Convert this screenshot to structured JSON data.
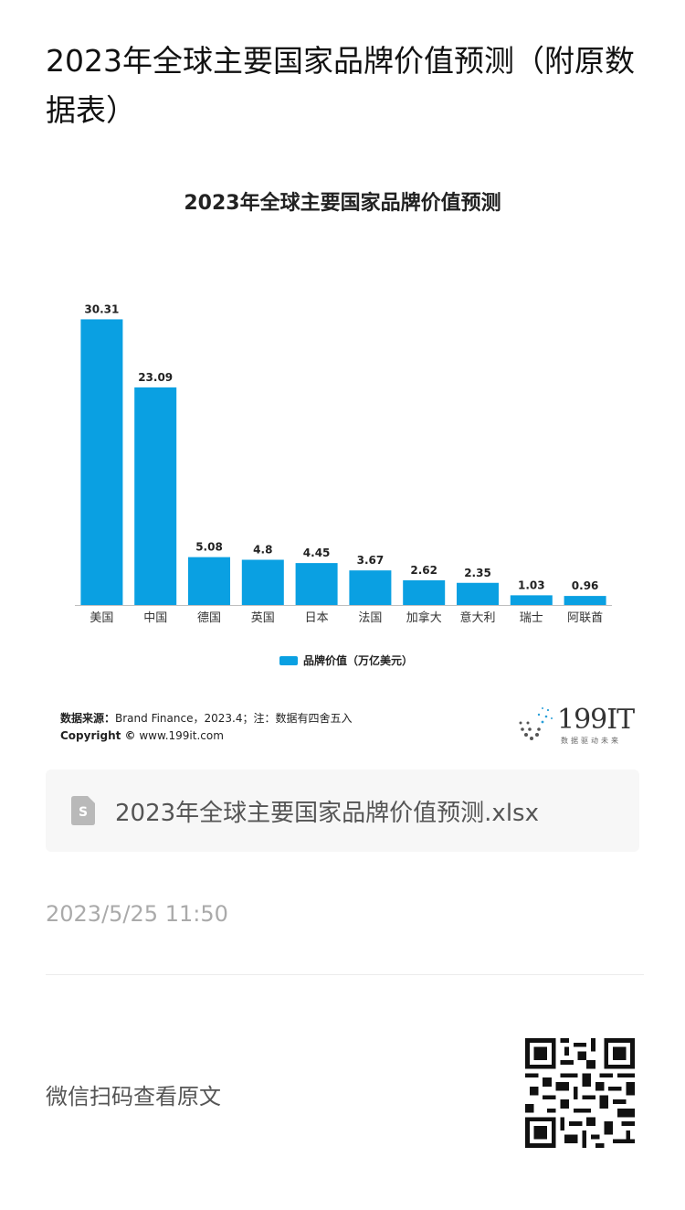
{
  "article": {
    "title": "2023年全球主要国家品牌价值预测（附原数据表）"
  },
  "chart_data": {
    "type": "bar",
    "title": "2023年全球主要国家品牌价值预测",
    "categories": [
      "美国",
      "中国",
      "德国",
      "英国",
      "日本",
      "法国",
      "加拿大",
      "意大利",
      "瑞士",
      "阿联酋"
    ],
    "series": [
      {
        "name": "品牌价值（万亿美元）",
        "values": [
          30.31,
          23.09,
          5.08,
          4.8,
          4.45,
          3.67,
          2.62,
          2.35,
          1.03,
          0.96
        ]
      }
    ],
    "data_labels": [
      "30.31",
      "23.09",
      "5.08",
      "4.8",
      "4.45",
      "3.67",
      "2.62",
      "2.35",
      "1.03",
      "0.96"
    ],
    "ylim": [
      0,
      32
    ],
    "xlabel": "",
    "ylabel": "",
    "grid": false,
    "legend_position": "bottom",
    "bar_color": "#0aa0e2"
  },
  "source": {
    "label": "数据来源：",
    "text": "Brand Finance，2023.4；注：数据有四舍五入",
    "copyright_label": "Copyright ©",
    "copyright_text": " www.199it.com"
  },
  "logo": {
    "text": "199IT",
    "tagline": "数据驱动未来"
  },
  "attachment": {
    "icon": "spreadsheet-file-icon",
    "filename": "2023年全球主要国家品牌价值预测.xlsx"
  },
  "meta": {
    "timestamp": "2023/5/25 11:50",
    "wechat_prompt": "微信扫码查看原文"
  }
}
